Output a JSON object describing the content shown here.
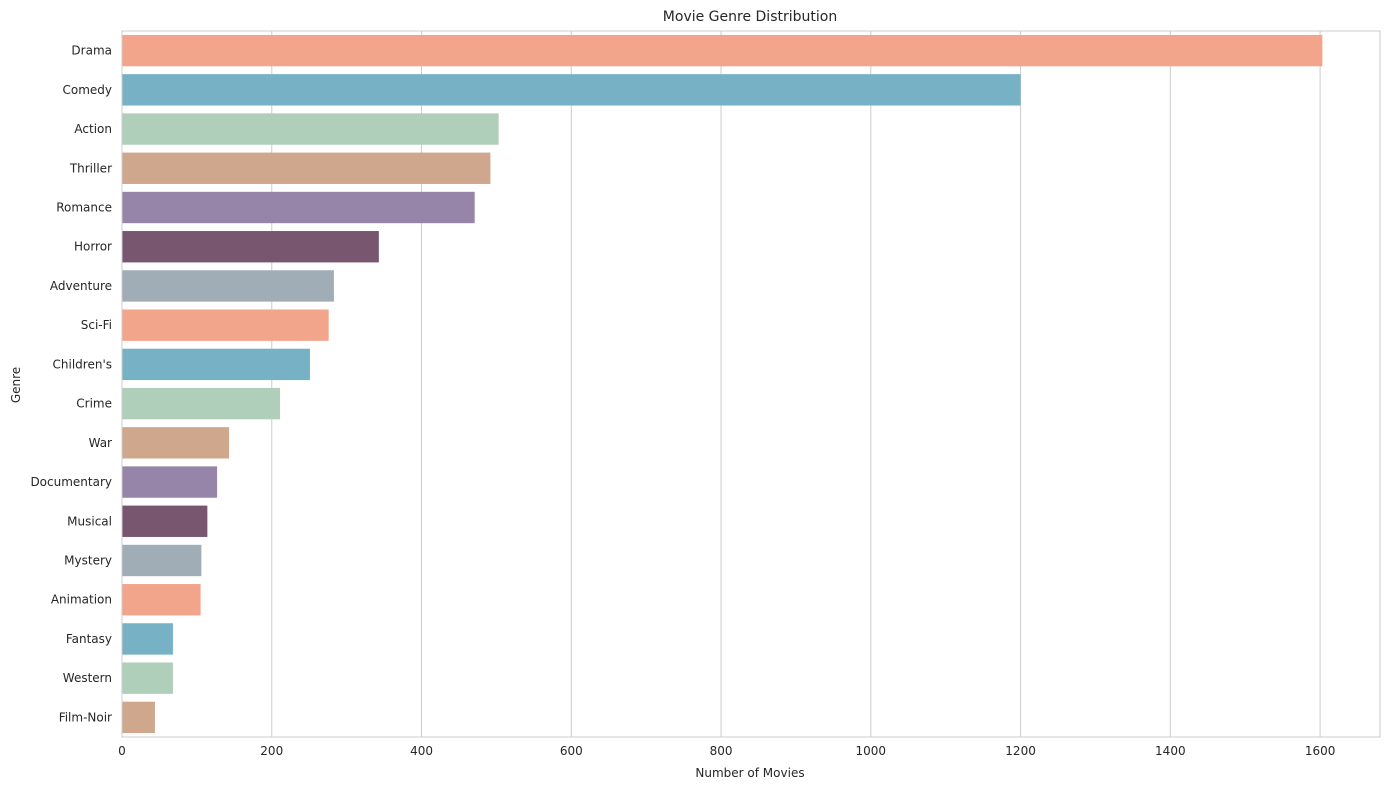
{
  "chart_data": {
    "type": "bar",
    "orientation": "horizontal",
    "title": "Movie Genre Distribution",
    "xlabel": "Number of Movies",
    "ylabel": "Genre",
    "xlim": [
      0,
      1680
    ],
    "xticks": [
      0,
      200,
      400,
      600,
      800,
      1000,
      1200,
      1400,
      1600
    ],
    "grid": "vertical",
    "categories": [
      "Drama",
      "Comedy",
      "Action",
      "Thriller",
      "Romance",
      "Horror",
      "Adventure",
      "Sci-Fi",
      "Children's",
      "Crime",
      "War",
      "Documentary",
      "Musical",
      "Mystery",
      "Animation",
      "Fantasy",
      "Western",
      "Film-Noir"
    ],
    "values": [
      1603,
      1200,
      503,
      492,
      471,
      343,
      283,
      276,
      251,
      211,
      143,
      127,
      114,
      106,
      105,
      68,
      68,
      44
    ],
    "colors": [
      "#f2a58a",
      "#76b1c5",
      "#afcfbb",
      "#cfa78c",
      "#9685a9",
      "#795670",
      "#a0adb7",
      "#f2a58a",
      "#76b1c5",
      "#afcfbb",
      "#cfa78c",
      "#9685a9",
      "#795670",
      "#a0adb7",
      "#f2a58a",
      "#76b1c5",
      "#afcfbb",
      "#cfa78c"
    ]
  }
}
